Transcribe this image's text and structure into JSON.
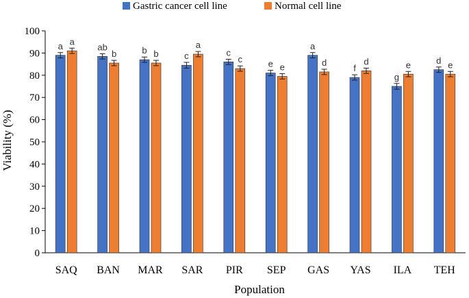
{
  "chart_data": {
    "type": "bar",
    "title": "",
    "xlabel": "Population",
    "ylabel": "Viability (%)",
    "ylim": [
      0,
      100
    ],
    "yticks": [
      "0",
      "10",
      "20",
      "30",
      "40",
      "50",
      "60",
      "70",
      "80",
      "90",
      "100"
    ],
    "categories": [
      "SAQ",
      "BAN",
      "MAR",
      "SAR",
      "PIR",
      "SEP",
      "GAS",
      "YAS",
      "ILA",
      "TEH"
    ],
    "legend_position": "top",
    "series": [
      {
        "name": "Gastric cancer cell line",
        "color": "#4472C4",
        "values": [
          89,
          88.5,
          87,
          84.5,
          86,
          81,
          89,
          79,
          75,
          82.5
        ],
        "errors": [
          1.2,
          1.2,
          1.2,
          1.3,
          1.2,
          1.2,
          1.2,
          1.2,
          1.3,
          1.2
        ],
        "letters": [
          "a",
          "ab",
          "b",
          "c",
          "c",
          "e",
          "a",
          "f",
          "g",
          "d"
        ]
      },
      {
        "name": "Normal cell line",
        "color": "#ED7D31",
        "values": [
          91,
          85.5,
          85.5,
          89.5,
          83,
          79.5,
          81.5,
          82,
          80.5,
          80.5
        ],
        "errors": [
          1.2,
          1.2,
          1.2,
          1.2,
          1.2,
          1.2,
          1.2,
          1.2,
          1.2,
          1.2
        ],
        "letters": [
          "a",
          "b",
          "b",
          "a",
          "c",
          "e",
          "d",
          "d",
          "e",
          "e"
        ]
      }
    ]
  }
}
